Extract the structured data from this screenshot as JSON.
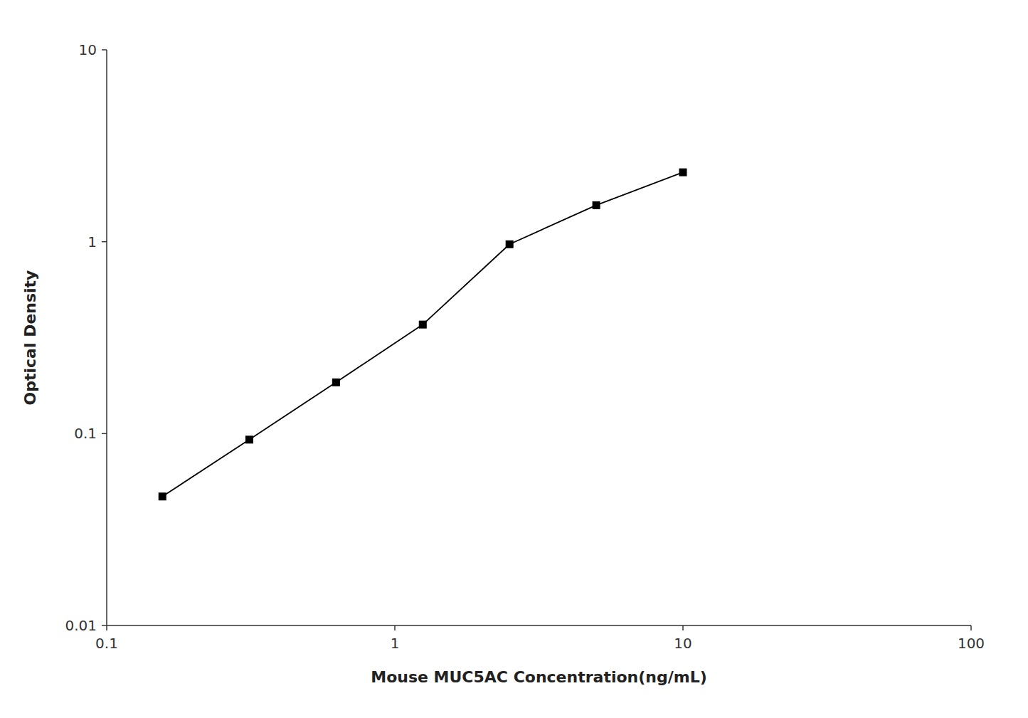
{
  "chart_data": {
    "type": "line",
    "x": [
      0.156,
      0.3125,
      0.625,
      1.25,
      2.5,
      5.0,
      10.0
    ],
    "series": [
      {
        "values": [
          0.047,
          0.093,
          0.185,
          0.37,
          0.97,
          1.55,
          2.3
        ],
        "color": "#000000",
        "marker": "square",
        "line_style": "solid"
      }
    ],
    "xlabel": "Mouse MUC5AC Concentration(ng/mL)",
    "ylabel": "Optical Density",
    "xlim": [
      0.1,
      100
    ],
    "ylim": [
      0.01,
      10
    ],
    "xticks": [
      0.1,
      1,
      10,
      100
    ],
    "yticks": [
      0.01,
      0.1,
      1,
      10
    ],
    "log": true,
    "grid": false
  }
}
